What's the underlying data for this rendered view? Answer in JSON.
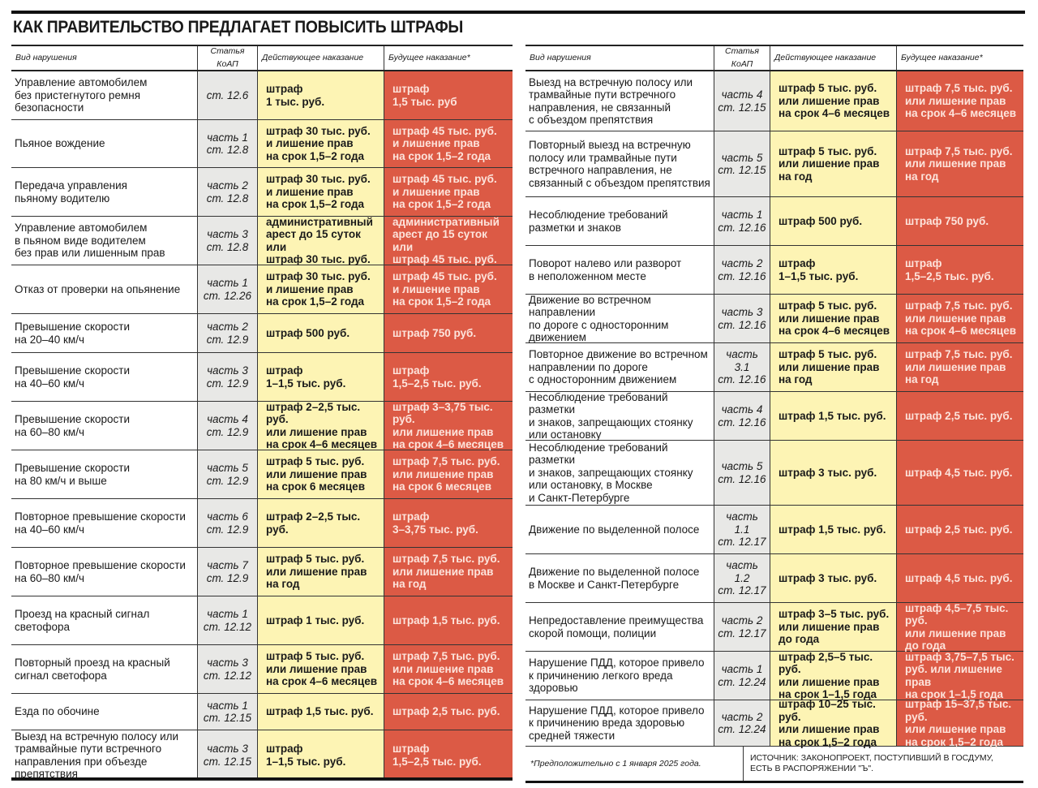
{
  "title": "КАК ПРАВИТЕЛЬСТВО ПРЕДЛАГАЕТ ПОВЫСИТЬ ШТРАФЫ",
  "headers": {
    "violation": "Вид нарушения",
    "article": "Статья КоАП",
    "current": "Действующее наказание",
    "future": "Будущее наказание*"
  },
  "colors": {
    "current_bg": "#fdf4b4",
    "future_bg": "#dc5a45",
    "article_bg": "#e8e8e6"
  },
  "left_rows": [
    {
      "violation": "Управление автомобилем\nбез пристегнутого ремня\nбезопасности",
      "article": "ст. 12.6",
      "current": "штраф\n1 тыс. руб.",
      "future": "штраф\n1,5 тыс. руб"
    },
    {
      "violation": "Пьяное вождение",
      "article": "часть 1\nст. 12.8",
      "current": "штраф 30 тыс. руб.\nи лишение прав\nна срок 1,5–2 года",
      "future": "штраф 45 тыс. руб.\nи лишение прав\nна срок 1,5–2 года"
    },
    {
      "violation": "Передача управления\nпьяному водителю",
      "article": "часть 2\nст. 12.8",
      "current": "штраф 30 тыс. руб.\nи лишение прав\nна срок 1,5–2 года",
      "future": "штраф 45 тыс. руб.\nи лишение прав\nна срок 1,5–2 года"
    },
    {
      "violation": "Управление автомобилем\nв пьяном виде водителем\nбез прав или лишенным прав",
      "article": "часть 3\nст. 12.8",
      "current": "административный\nарест до 15 суток или\nштраф 30 тыс. руб.",
      "future": "административный\nарест до 15 суток или\nштраф 45 тыс. руб."
    },
    {
      "violation": "Отказ от проверки на опьянение",
      "article": "часть 1\nст. 12.26",
      "current": "штраф 30 тыс. руб.\nи лишение прав\nна срок 1,5–2 года",
      "future": "штраф 45 тыс. руб.\nи лишение прав\nна срок 1,5–2 года"
    },
    {
      "violation": "Превышение скорости\nна 20–40 км/ч",
      "article": "часть 2\nст. 12.9",
      "current": "штраф 500 руб.",
      "future": "штраф 750 руб."
    },
    {
      "violation": "Превышение скорости\nна 40–60 км/ч",
      "article": "часть 3\nст. 12.9",
      "current": "штраф\n1–1,5 тыс. руб.",
      "future": "штраф\n1,5–2,5 тыс. руб."
    },
    {
      "violation": "Превышение скорости\nна 60–80 км/ч",
      "article": "часть 4\nст. 12.9",
      "current": "штраф 2–2,5 тыс. руб.\nили лишение прав\nна срок 4–6 месяцев",
      "future": "штраф 3–3,75 тыс. руб.\nили лишение прав\nна срок 4–6 месяцев"
    },
    {
      "violation": "Превышение скорости\nна 80 км/ч и выше",
      "article": "часть 5\nст. 12.9",
      "current": "штраф 5 тыс. руб.\nили лишение прав\nна срок 6 месяцев",
      "future": "штраф 7,5 тыс. руб.\nили лишение прав\nна срок 6 месяцев"
    },
    {
      "violation": "Повторное превышение скорости\nна 40–60 км/ч",
      "article": "часть 6\nст. 12.9",
      "current": "штраф 2–2,5 тыс. руб.",
      "future": "штраф\n3–3,75 тыс. руб."
    },
    {
      "violation": "Повторное превышение скорости\nна 60–80 км/ч",
      "article": "часть 7\nст. 12.9",
      "current": "штраф 5 тыс. руб.\nили лишение прав\nна год",
      "future": "штраф 7,5 тыс. руб.\nили лишение прав\nна год"
    },
    {
      "violation": "Проезд на красный сигнал\nсветофора",
      "article": "часть 1\nст. 12.12",
      "current": "штраф 1 тыс. руб.",
      "future": "штраф 1,5 тыс. руб."
    },
    {
      "violation": "Повторный проезд на красный\nсигнал светофора",
      "article": "часть 3\nст. 12.12",
      "current": "штраф 5 тыс. руб.\nили лишение прав\nна срок 4–6 месяцев",
      "future": "штраф 7,5 тыс. руб.\nили лишение прав\nна срок 4–6 месяцев"
    },
    {
      "violation": "Езда по обочине",
      "article": "часть 1\nст. 12.15",
      "current": "штраф 1,5 тыс. руб.",
      "future": "штраф 2,5 тыс. руб."
    },
    {
      "violation": "Выезд на встречную полосу или\nтрамвайные пути встречного\nнаправления при объезде препятствия",
      "article": "часть 3\nст. 12.15",
      "current": "штраф\n1–1,5 тыс. руб.",
      "future": "штраф\n1,5–2,5 тыс. руб."
    }
  ],
  "right_rows": [
    {
      "violation": "Выезд на встречную полосу или\nтрамвайные пути встречного\nнаправления, не связанный\nс объездом препятствия",
      "article": "часть 4\nст. 12.15",
      "current": "штраф 5 тыс. руб.\nили лишение прав\nна срок 4–6 месяцев",
      "future": "штраф 7,5 тыс. руб.\nили лишение прав\nна срок 4–6 месяцев"
    },
    {
      "violation": "Повторный выезд на встречную\nполосу или трамвайные пути\nвстречного направления, не\nсвязанный с объездом препятствия",
      "article": "часть 5\nст. 12.15",
      "current": "штраф 5 тыс. руб.\nили лишение прав\nна год",
      "future": "штраф 7,5 тыс. руб.\nили лишение прав\nна год"
    },
    {
      "violation": "Несоблюдение требований\nразметки и знаков",
      "article": "часть 1\nст. 12.16",
      "current": "штраф 500 руб.",
      "future": "штраф 750 руб."
    },
    {
      "violation": "Поворот налево или разворот\nв неположенном месте",
      "article": "часть 2\nст. 12.16",
      "current": "штраф\n1–1,5 тыс. руб.",
      "future": "штраф\n1,5–2,5 тыс. руб."
    },
    {
      "violation": "Движение во встречном направлении\nпо дороге с односторонним\nдвижением",
      "article": "часть 3\nст. 12.16",
      "current": "штраф 5 тыс. руб.\nили лишение прав\nна срок 4–6 месяцев",
      "future": "штраф 7,5 тыс. руб.\nили лишение прав\nна срок 4–6 месяцев"
    },
    {
      "violation": "Повторное движение во встречном\nнаправлении по дороге\nс односторонним движением",
      "article": "часть 3.1\nст. 12.16",
      "current": "штраф 5 тыс. руб.\nили лишение прав\nна год",
      "future": "штраф 7,5 тыс. руб.\nили лишение прав\nна год"
    },
    {
      "violation": "Несоблюдение требований разметки\nи знаков, запрещающих стоянку\nили остановку",
      "article": "часть 4\nст. 12.16",
      "current": "штраф 1,5 тыс. руб.",
      "future": "штраф 2,5 тыс. руб."
    },
    {
      "violation": "Несоблюдение требований разметки\nи знаков, запрещающих стоянку\nили остановку, в Москве\nи Санкт-Петербурге",
      "article": "часть 5\nст. 12.16",
      "current": "штраф 3 тыс. руб.",
      "future": "штраф 4,5 тыс. руб."
    },
    {
      "violation": "Движение по выделенной полосе",
      "article": "часть 1.1\nст. 12.17",
      "current": "штраф 1,5 тыс. руб.",
      "future": "штраф 2,5 тыс. руб."
    },
    {
      "violation": "Движение по выделенной полосе\nв Москве и Санкт-Петербурге",
      "article": "часть 1.2\nст. 12.17",
      "current": "штраф 3 тыс. руб.",
      "future": "штраф 4,5 тыс. руб."
    },
    {
      "violation": "Непредоставление преимущества\nскорой помощи, полиции",
      "article": "часть 2\nст. 12.17",
      "current": "штраф 3–5 тыс. руб.\nили лишение прав\nдо года",
      "future": "штраф 4,5–7,5 тыс. руб.\nили лишение прав\nдо года"
    },
    {
      "violation": "Нарушение ПДД, которое привело\nк причинению легкого вреда\nздоровью",
      "article": "часть 1\nст. 12.24",
      "current": "штраф 2,5–5 тыс. руб.\nили лишение прав\nна срок 1–1,5 года",
      "future": "штраф 3,75–7,5 тыс.\nруб. или лишение прав\nна срок 1–1,5 года"
    },
    {
      "violation": "Нарушение ПДД, которое привело\nк причинению вреда здоровью\nсредней тяжести",
      "article": "часть 2\nст. 12.24",
      "current": "штраф 10–25 тыс. руб.\nили лишение прав\nна срок 1,5–2 года",
      "future": "штраф 15–37,5 тыс. руб.\nили лишение прав\nна срок 1,5–2 года"
    }
  ],
  "footnote": "*Предположительно с 1 января 2025 года.",
  "source": "ИСТОЧНИК: ЗАКОНОПРОЕКТ, ПОСТУПИВШИЙ В ГОСДУМУ,\nЕСТЬ В РАСПОРЯЖЕНИИ \"Ъ\"."
}
